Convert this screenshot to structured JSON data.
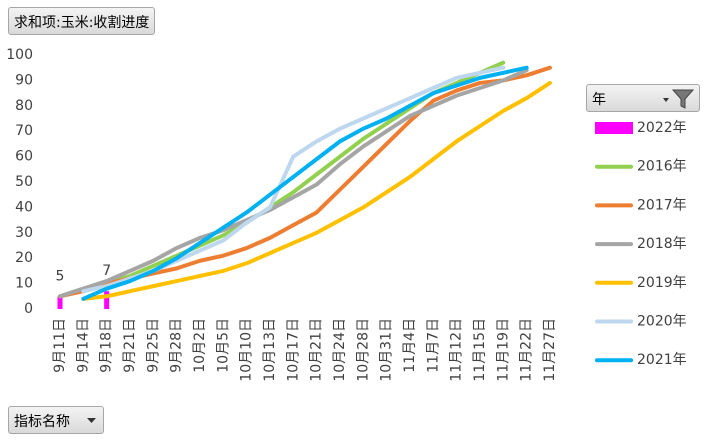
{
  "field_buttons": {
    "value_field": "求和项:玉米:收割进度",
    "legend_field": "年",
    "axis_field": "指标名称"
  },
  "chart_data": {
    "type": "line",
    "categories": [
      "9月11日",
      "9月14日",
      "9月18日",
      "9月21日",
      "9月25日",
      "9月28日",
      "10月2日",
      "10月5日",
      "10月10日",
      "10月13日",
      "10月17日",
      "10月21日",
      "10月24日",
      "10月28日",
      "10月31日",
      "11月4日",
      "11月7日",
      "11月12日",
      "11月15日",
      "11月19日",
      "11月22日",
      "11月27日"
    ],
    "ylim": [
      0,
      100
    ],
    "yticks": [
      0,
      10,
      20,
      30,
      40,
      50,
      60,
      70,
      80,
      90,
      100
    ],
    "grid": false,
    "legend": "right",
    "series": [
      {
        "name": "2022年",
        "type": "bar",
        "color": "#ff00ff",
        "values": [
          5,
          null,
          7,
          null,
          null,
          null,
          null,
          null,
          null,
          null,
          null,
          null,
          null,
          null,
          null,
          null,
          null,
          null,
          null,
          null,
          null,
          null
        ]
      },
      {
        "name": "2016年",
        "color": "#92d050",
        "values": [
          5,
          8,
          10,
          13,
          17,
          21,
          25,
          29,
          34,
          40,
          46,
          53,
          60,
          67,
          73,
          79,
          85,
          89,
          93,
          97,
          null,
          null
        ]
      },
      {
        "name": "2017年",
        "color": "#ed7d31",
        "values": [
          5,
          7,
          10,
          12,
          14,
          16,
          19,
          21,
          24,
          28,
          33,
          38,
          47,
          56,
          65,
          74,
          82,
          86,
          89,
          90,
          92,
          95
        ]
      },
      {
        "name": "2018年",
        "color": "#a5a5a5",
        "values": [
          5,
          8,
          11,
          15,
          19,
          24,
          28,
          31,
          35,
          39,
          44,
          49,
          57,
          64,
          70,
          76,
          80,
          84,
          87,
          90,
          94,
          null
        ]
      },
      {
        "name": "2019年",
        "color": "#ffc000",
        "values": [
          null,
          4,
          5,
          7,
          9,
          11,
          13,
          15,
          18,
          22,
          26,
          30,
          35,
          40,
          46,
          52,
          59,
          66,
          72,
          78,
          83,
          89
        ]
      },
      {
        "name": "2020年",
        "color": "#bdd7ee",
        "values": [
          null,
          7,
          9,
          12,
          15,
          19,
          23,
          27,
          34,
          40,
          60,
          66,
          71,
          75,
          79,
          83,
          87,
          91,
          93,
          95,
          null,
          null
        ]
      },
      {
        "name": "2021年",
        "color": "#00b0f0",
        "values": [
          null,
          4,
          8,
          11,
          15,
          20,
          26,
          32,
          38,
          45,
          52,
          59,
          66,
          71,
          75,
          80,
          85,
          88,
          91,
          93,
          95,
          null
        ]
      }
    ]
  }
}
